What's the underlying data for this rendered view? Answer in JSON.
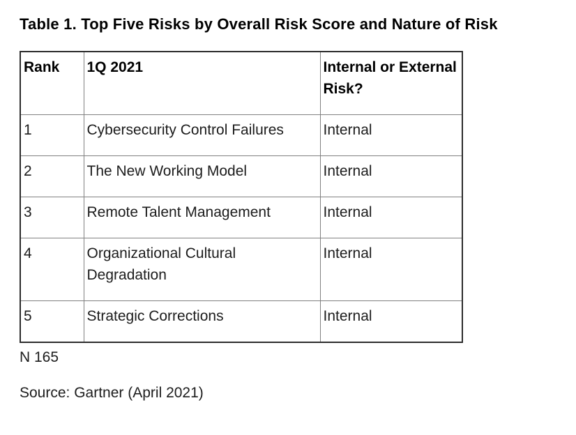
{
  "title": "Table 1. Top Five Risks by Overall Risk Score and Nature of Risk",
  "table": {
    "columns": {
      "rank": "Rank",
      "period": "1Q 2021",
      "nature": "Internal or External Risk?"
    },
    "rows": [
      {
        "rank": "1",
        "risk": "Cybersecurity Control Failures",
        "nature": "Internal"
      },
      {
        "rank": "2",
        "risk": "The New Working Model",
        "nature": "Internal"
      },
      {
        "rank": "3",
        "risk": "Remote Talent Management",
        "nature": "Internal"
      },
      {
        "rank": "4",
        "risk": "Organizational Cultural Degradation",
        "nature": "Internal"
      },
      {
        "rank": "5",
        "risk": "Strategic Corrections",
        "nature": "Internal"
      }
    ]
  },
  "footnote": "N 165",
  "source": "Source: Gartner (April 2021)",
  "colors": {
    "background": "#ffffff",
    "text": "#1c1c1c",
    "title_text": "#000000",
    "border_inner": "#808080",
    "border_outer": "#2b2b2b"
  }
}
